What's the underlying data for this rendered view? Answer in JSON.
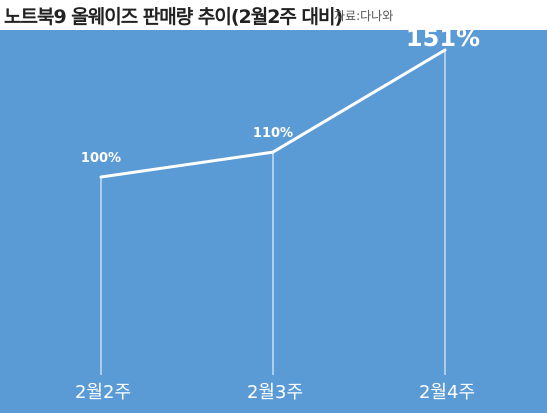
{
  "header": {
    "title": "노트북9 올웨이즈 판매량 추이(2월2주 대비)",
    "source": "자료:다나와"
  },
  "colors": {
    "background": "#5b9bd5",
    "line": "#ffffff",
    "text": "#ffffff"
  },
  "chart_data": {
    "type": "line",
    "title": "노트북9 올웨이즈 판매량 추이(2월2주 대비)",
    "categories": [
      "2월2주",
      "2월3주",
      "2월4주"
    ],
    "values": [
      100,
      110,
      151
    ],
    "data_labels": [
      "100%",
      "110%",
      "151%"
    ],
    "xlabel": "",
    "ylabel": "",
    "grid": false,
    "legend": "none"
  }
}
